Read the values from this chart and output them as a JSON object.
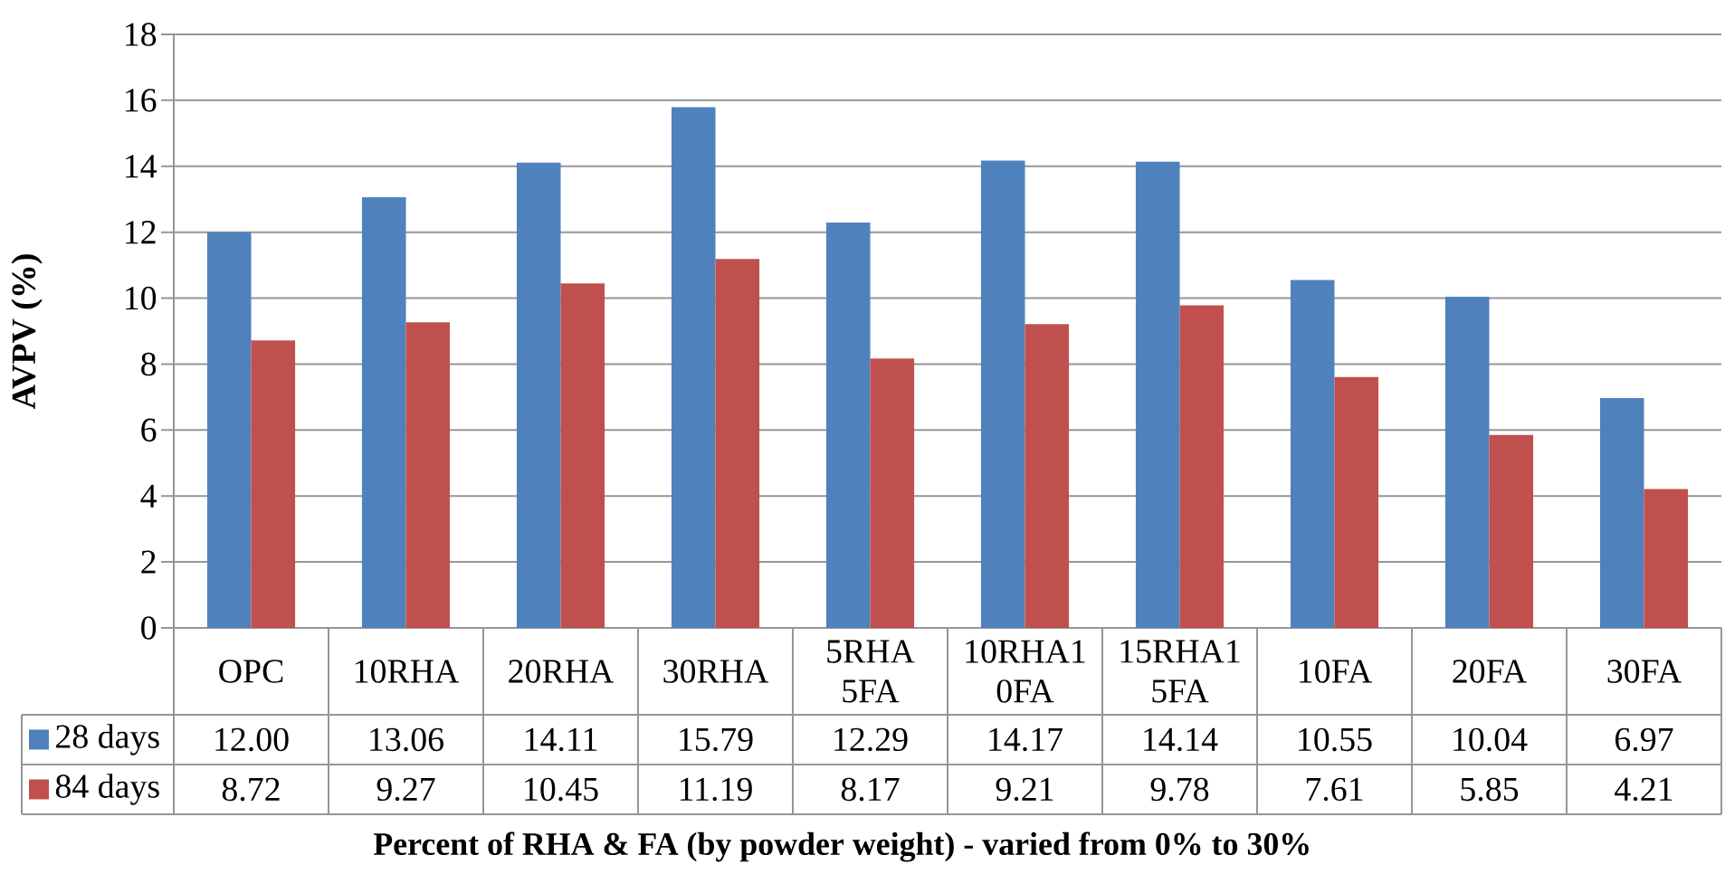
{
  "chart_data": {
    "type": "bar",
    "ylabel": "AVPV (%)",
    "xlabel": "Percent of RHA & FA (by powder weight) - varied from 0% to 30%",
    "categories": [
      "OPC",
      "10RHA",
      "20RHA",
      "30RHA",
      "5RHA 5FA",
      "10RHA1 0FA",
      "15RHA1 5FA",
      "10FA",
      "20FA",
      "30FA"
    ],
    "series": [
      {
        "name": "28 days",
        "color": "#4f81bd",
        "values": [
          12.0,
          13.06,
          14.11,
          15.79,
          12.29,
          14.17,
          14.14,
          10.55,
          10.04,
          6.97
        ],
        "value_labels": [
          "12.00",
          "13.06",
          "14.11",
          "15.79",
          "12.29",
          "14.17",
          "14.14",
          "10.55",
          "10.04",
          "6.97"
        ]
      },
      {
        "name": "84 days",
        "color": "#c0504d",
        "values": [
          8.72,
          9.27,
          10.45,
          11.19,
          8.17,
          9.21,
          9.78,
          7.61,
          5.85,
          4.21
        ],
        "value_labels": [
          "8.72",
          "9.27",
          "10.45",
          "11.19",
          "8.17",
          "9.21",
          "9.78",
          "7.61",
          "5.85",
          "4.21"
        ]
      }
    ],
    "ylim": [
      0,
      18
    ],
    "yticks": [
      0,
      2,
      4,
      6,
      8,
      10,
      12,
      14,
      16,
      18
    ],
    "grid": "y",
    "legend": "bottom"
  }
}
